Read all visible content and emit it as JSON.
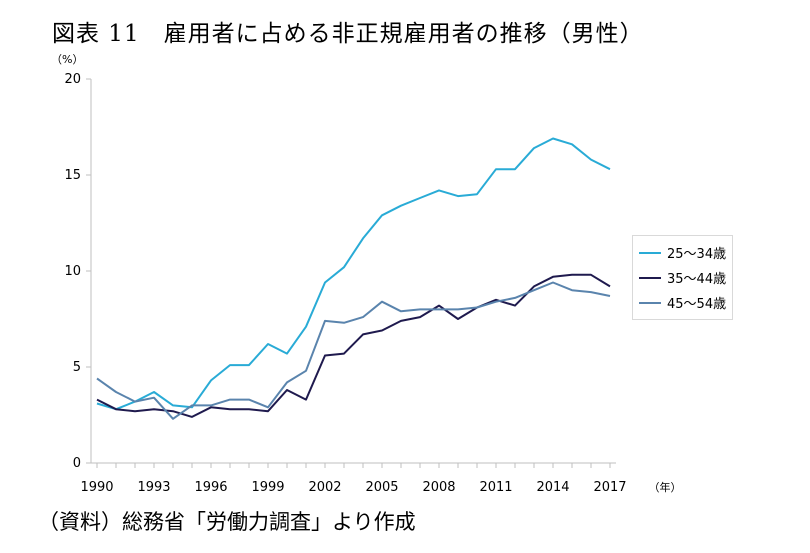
{
  "title": "図表 11　雇用者に占める非正規雇用者の推移（男性）",
  "source": "（資料）総務省「労働力調査」より作成",
  "chart_data": {
    "type": "line",
    "ylabel": "（%）",
    "xunit": "（年）",
    "ylim": [
      0,
      20
    ],
    "yticks": [
      0,
      5,
      10,
      15,
      20
    ],
    "xlim": [
      1990,
      2017
    ],
    "xticks": [
      1990,
      1993,
      1996,
      1999,
      2002,
      2005,
      2008,
      2011,
      2014,
      2017
    ],
    "grid": false,
    "legend_position": "right",
    "x": [
      1990,
      1991,
      1992,
      1993,
      1994,
      1995,
      1996,
      1997,
      1998,
      1999,
      2000,
      2001,
      2002,
      2003,
      2004,
      2005,
      2006,
      2007,
      2008,
      2009,
      2010,
      2011,
      2012,
      2013,
      2014,
      2015,
      2016,
      2017
    ],
    "series": [
      {
        "name": "25〜34歳",
        "color": "#29abd6",
        "values": [
          3.1,
          2.8,
          3.2,
          3.7,
          3.0,
          2.9,
          4.3,
          5.1,
          5.1,
          6.2,
          5.7,
          7.1,
          9.4,
          10.2,
          11.7,
          12.9,
          13.4,
          13.8,
          14.2,
          13.9,
          14.0,
          15.3,
          15.3,
          16.4,
          16.9,
          16.6,
          15.8,
          15.3
        ]
      },
      {
        "name": "35〜44歳",
        "color": "#1f1a4e",
        "values": [
          3.3,
          2.8,
          2.7,
          2.8,
          2.7,
          2.4,
          2.9,
          2.8,
          2.8,
          2.7,
          3.8,
          3.3,
          5.6,
          5.7,
          6.7,
          6.9,
          7.4,
          7.6,
          8.2,
          7.5,
          8.1,
          8.5,
          8.2,
          9.2,
          9.7,
          9.8,
          9.8,
          9.2
        ]
      },
      {
        "name": "45〜54歳",
        "color": "#5a84ad",
        "values": [
          4.4,
          3.7,
          3.2,
          3.4,
          2.3,
          3.0,
          3.0,
          3.3,
          3.3,
          2.9,
          4.2,
          4.8,
          7.4,
          7.3,
          7.6,
          8.4,
          7.9,
          8.0,
          8.0,
          8.0,
          8.1,
          8.4,
          8.6,
          9.0,
          9.4,
          9.0,
          8.9,
          8.7
        ]
      }
    ]
  }
}
